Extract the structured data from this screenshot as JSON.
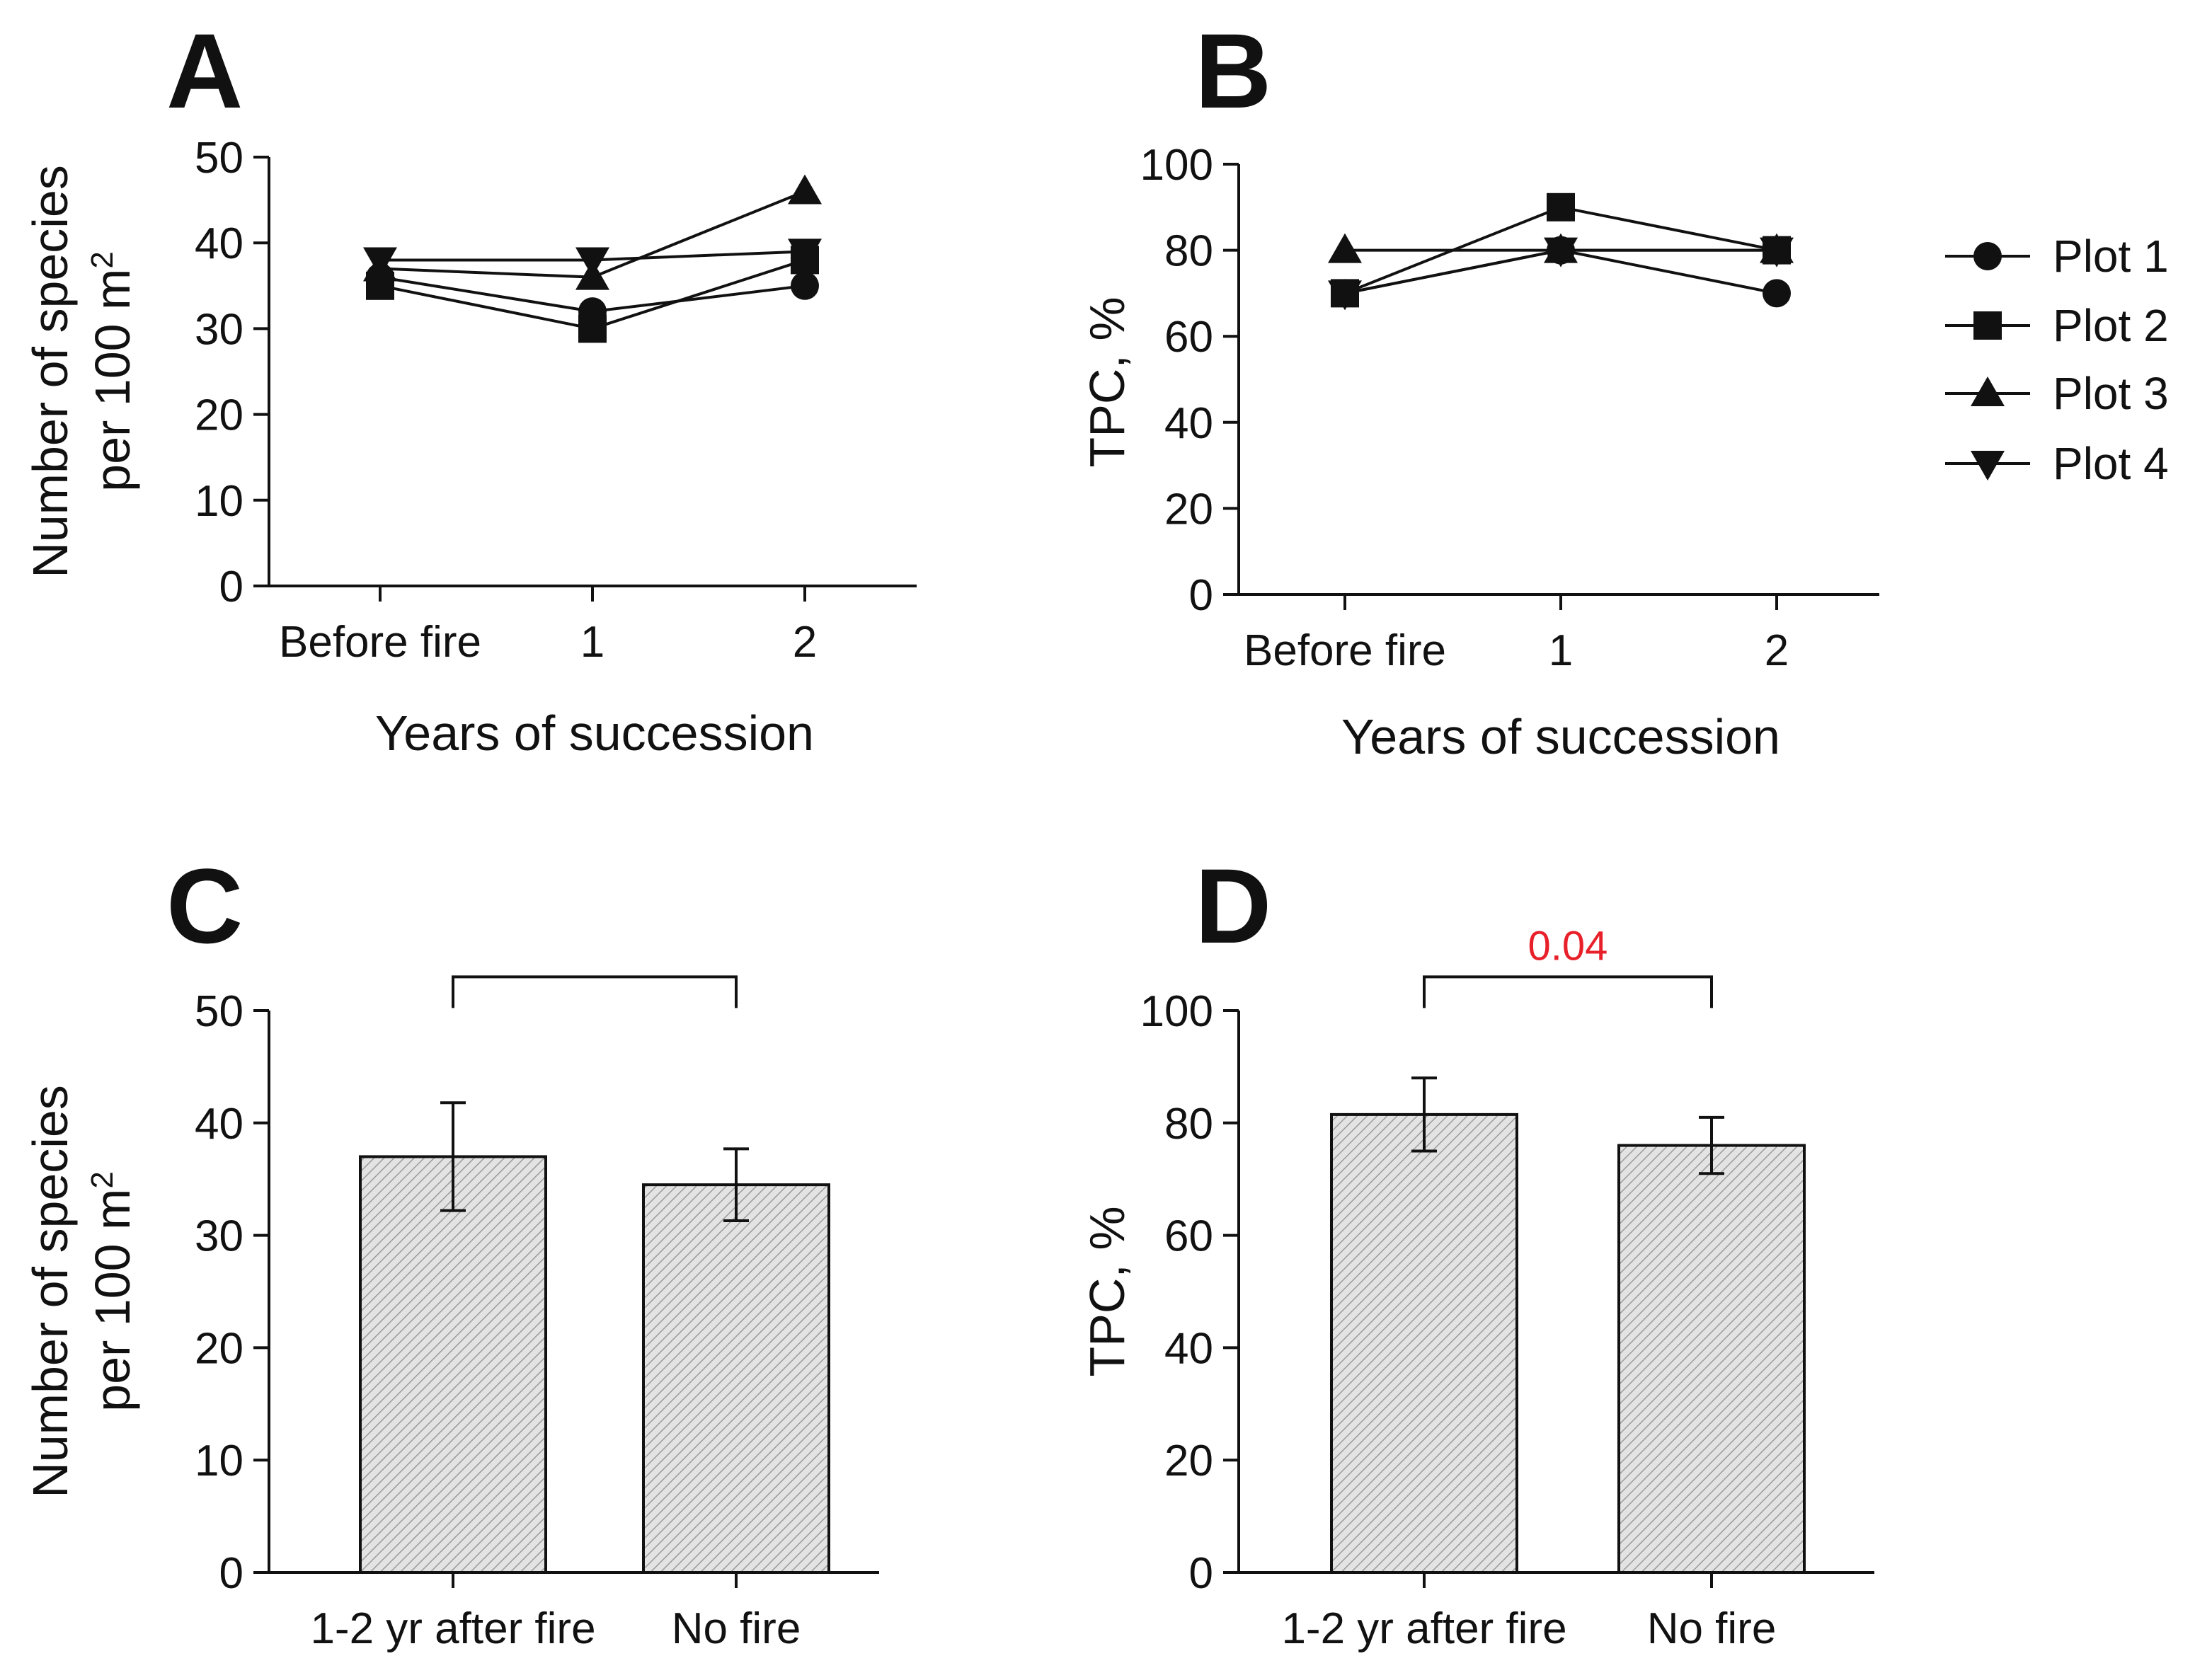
{
  "colors": {
    "ink": "#111111",
    "significance": "#e8202a",
    "bar_fill": "#d9d9d9"
  },
  "legend": {
    "entries": [
      {
        "label": "Plot 1",
        "marker": "circle"
      },
      {
        "label": "Plot 2",
        "marker": "square"
      },
      {
        "label": "Plot 3",
        "marker": "triangle-up"
      },
      {
        "label": "Plot 4",
        "marker": "triangle-down"
      }
    ]
  },
  "chart_data": [
    {
      "id": "A",
      "letter": "A",
      "type": "line",
      "categories": [
        "Before fire",
        "1",
        "2"
      ],
      "xlabel": "Years of succession",
      "ylabel_line1": "Number of species",
      "ylabel_line2": "per 100 m",
      "ylabel_sup": "2",
      "ylim": [
        0,
        50
      ],
      "yticks": [
        0,
        10,
        20,
        30,
        40,
        50
      ],
      "series": [
        {
          "name": "Plot 1",
          "marker": "circle",
          "values": [
            36,
            32,
            35
          ]
        },
        {
          "name": "Plot 2",
          "marker": "square",
          "values": [
            35,
            30,
            38
          ]
        },
        {
          "name": "Plot 3",
          "marker": "triangle-up",
          "values": [
            37,
            36,
            46
          ]
        },
        {
          "name": "Plot 4",
          "marker": "triangle-down",
          "values": [
            38,
            38,
            39
          ]
        }
      ]
    },
    {
      "id": "B",
      "letter": "B",
      "type": "line",
      "categories": [
        "Before fire",
        "1",
        "2"
      ],
      "xlabel": "Years of succession",
      "ylabel_line1": "TPC, %",
      "ylim": [
        0,
        100
      ],
      "yticks": [
        0,
        20,
        40,
        60,
        80,
        100
      ],
      "series": [
        {
          "name": "Plot 1",
          "marker": "circle",
          "values": [
            70,
            80,
            70
          ]
        },
        {
          "name": "Plot 2",
          "marker": "square",
          "values": [
            70,
            90,
            80
          ]
        },
        {
          "name": "Plot 3",
          "marker": "triangle-up",
          "values": [
            80,
            80,
            80
          ]
        },
        {
          "name": "Plot 4",
          "marker": "triangle-down",
          "values": [
            70,
            80,
            80
          ]
        }
      ]
    },
    {
      "id": "C",
      "letter": "C",
      "type": "bar",
      "categories": [
        "1-2 yr after fire",
        "No fire"
      ],
      "values": [
        37,
        34.5
      ],
      "errors": [
        4.8,
        3.2
      ],
      "ylabel_line1": "Number of species",
      "ylabel_line2": "per 100 m",
      "ylabel_sup": "2",
      "ylim": [
        0,
        50
      ],
      "yticks": [
        0,
        10,
        20,
        30,
        40,
        50
      ],
      "significance": {
        "label": "",
        "level": 53
      }
    },
    {
      "id": "D",
      "letter": "D",
      "type": "bar",
      "categories": [
        "1-2 yr after fire",
        "No fire"
      ],
      "values": [
        81.5,
        76
      ],
      "errors": [
        6.5,
        5
      ],
      "ylabel_line1": "TPC, %",
      "ylim": [
        0,
        100
      ],
      "yticks": [
        0,
        20,
        40,
        60,
        80,
        100
      ],
      "significance": {
        "label": "0.04",
        "level": 106
      }
    }
  ]
}
